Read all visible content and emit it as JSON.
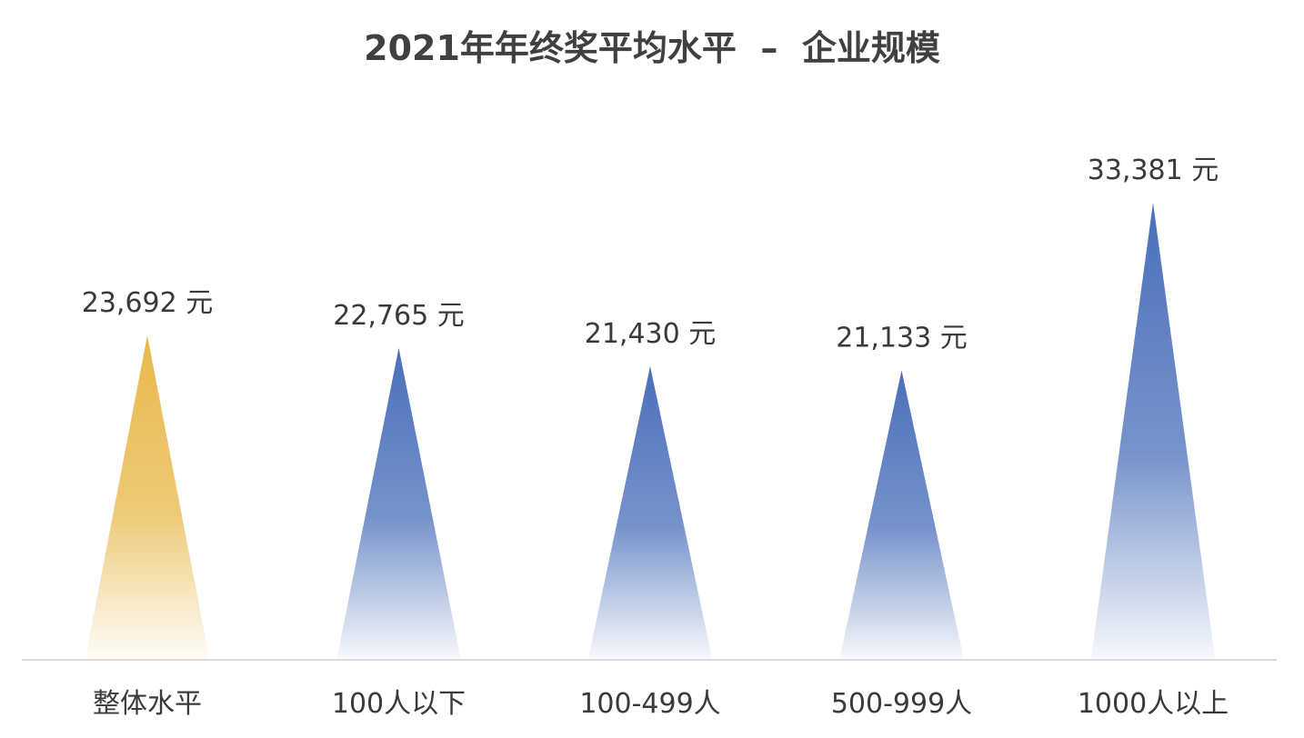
{
  "chart_data": {
    "type": "bar",
    "title": "2021年年终奖平均水平  –  企业规模",
    "xlabel": "",
    "ylabel": "",
    "ylim": [
      0,
      35000
    ],
    "grid": false,
    "legend": "none",
    "unit": "元",
    "categories": [
      "整体水平",
      "100人以下",
      "100-499人",
      "500-999人",
      "1000人以上"
    ],
    "values": [
      23692,
      22765,
      21430,
      21133,
      33381
    ],
    "value_labels": [
      "23,692 元",
      "22,765 元",
      "21,430 元",
      "21,133 元",
      "33,381 元"
    ],
    "colors": [
      "#e8b84a",
      "#4a6fba",
      "#4a6fba",
      "#4a6fba",
      "#4a6fba"
    ]
  }
}
